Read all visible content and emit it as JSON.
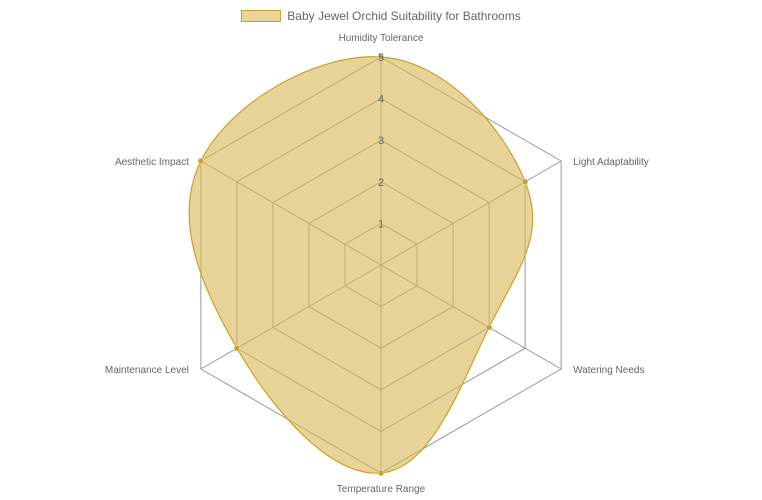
{
  "chart_data": {
    "type": "radar",
    "title": "",
    "series": [
      {
        "name": "Baby Jewel Orchid Suitability for Bathrooms",
        "values": [
          5,
          4,
          3,
          5,
          4,
          5
        ]
      }
    ],
    "categories": [
      "Humidity Tolerance",
      "Light Adaptability",
      "Watering Needs",
      "Temperature Range",
      "Maintenance Level",
      "Aesthetic Impact"
    ],
    "rlim": [
      0,
      5
    ],
    "tick_labels": [
      "1",
      "2",
      "3",
      "4",
      "5"
    ],
    "legend": "top-center",
    "grid": true,
    "colors": {
      "fill": "#dab95a",
      "border": "#c9a227",
      "point": "#c9a227",
      "grid": "#999999",
      "tick_text": "#666666",
      "label_text": "#666666"
    }
  }
}
